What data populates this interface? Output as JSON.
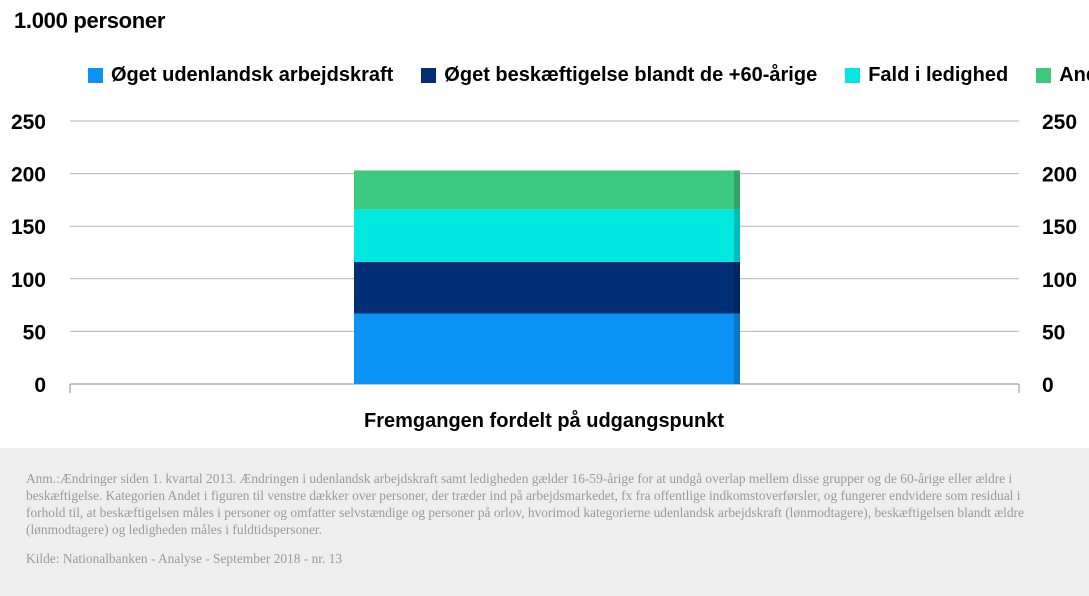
{
  "unit_label": "1.000 personer",
  "legend": [
    {
      "label": "Øget udenlandsk arbejdskraft",
      "color": "#0a93f5"
    },
    {
      "label": "Øget beskæftigelse blandt de +60-årige",
      "color": "#002f76"
    },
    {
      "label": "Fald i ledighed",
      "color": "#00e8e0"
    },
    {
      "label": "Andet",
      "color": "#3cc97e"
    }
  ],
  "chart_data": {
    "type": "bar",
    "stacked": true,
    "categories": [
      "Fremgangen fordelt på udgangspunkt"
    ],
    "series": [
      {
        "name": "Øget udenlandsk arbejdskraft",
        "values": [
          67
        ],
        "color": "#0a93f5"
      },
      {
        "name": "Øget beskæftigelse blandt de +60-årige",
        "values": [
          49
        ],
        "color": "#002f76"
      },
      {
        "name": "Fald i ledighed",
        "values": [
          50
        ],
        "color": "#00e8e0"
      },
      {
        "name": "Andet",
        "values": [
          37
        ],
        "color": "#3cc97e"
      }
    ],
    "xlabel": "",
    "ylabel": "1.000 personer",
    "ylim": [
      0,
      250
    ],
    "yticks": [
      0,
      50,
      100,
      150,
      200,
      250
    ],
    "yaxis_right": true,
    "grid": true,
    "legend_position": "top"
  },
  "note": "Anm.:Ændringer siden 1. kvartal 2013. Ændringen i udenlandsk arbejdskraft samt ledigheden gælder 16-59-årige for at undgå overlap mellem disse grupper og de 60-årige eller ældre i beskæftigelse. Kategorien Andet i figuren til venstre dækker over personer, der træder ind på arbejdsmarkedet, fx fra offentlige indkomstoverførsler, og fungerer endvidere som residual i forhold til, at beskæftigelsen måles i personer og omfatter selvstændige og personer på orlov, hvorimod kategorierne udenlandsk arbejdskraft (lønmodtagere), beskæftigelsen blandt ældre (lønmodtagere) og ledigheden måles i fuldtidspersoner.",
  "source": "Kilde: Nationalbanken - Analyse - September 2018 - nr. 13"
}
